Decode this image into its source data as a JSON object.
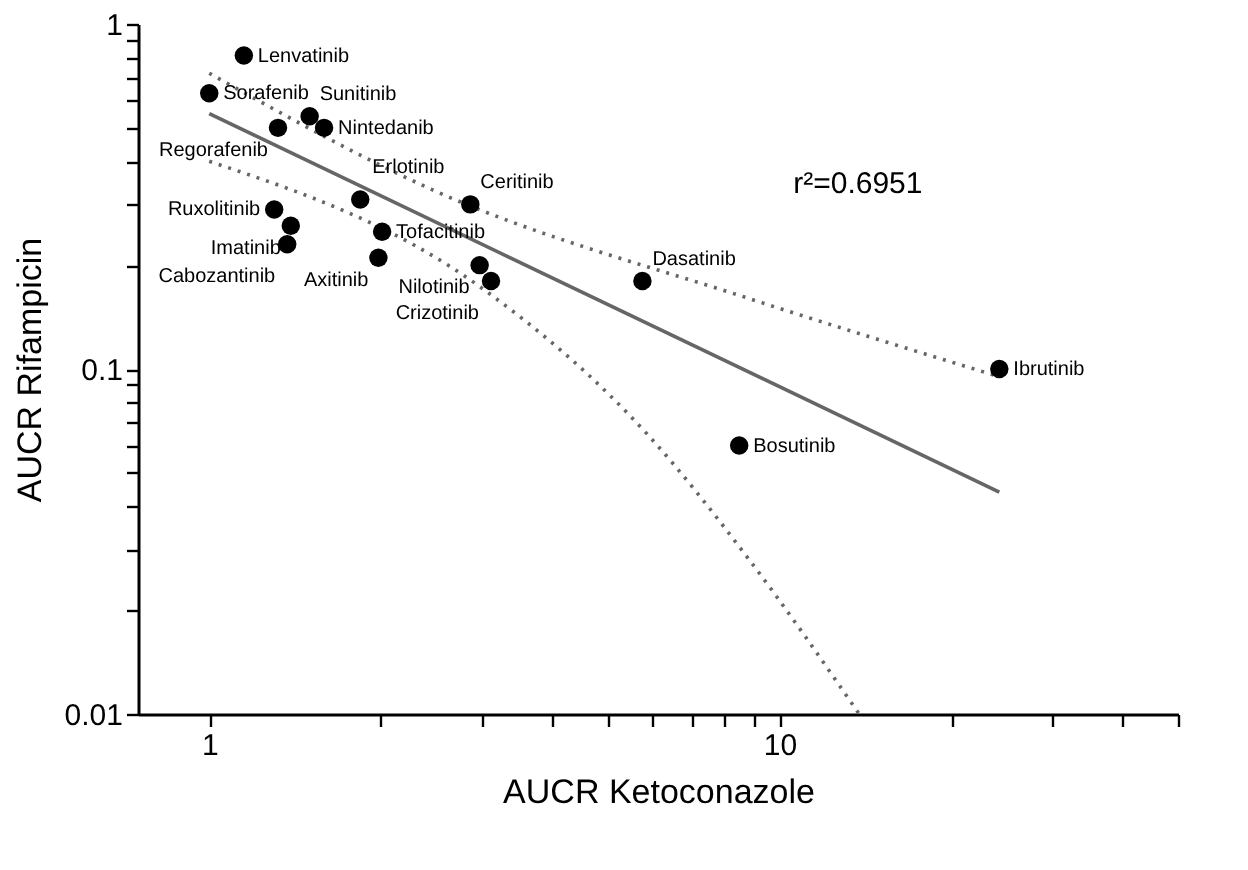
{
  "chart_data": {
    "type": "scatter",
    "xlabel": "AUCR Ketoconazole",
    "ylabel": "AUCR Rifampicin",
    "log": "xy",
    "grid": false,
    "marker": "circle",
    "xlim": [
      0.75,
      50
    ],
    "ylim": [
      0.01,
      1
    ],
    "xticks": [
      1,
      {
        "value": 2,
        "label": null
      },
      {
        "value": 3,
        "label": null
      },
      {
        "value": 4,
        "label": null
      },
      {
        "value": 5,
        "label": null
      },
      {
        "value": 6,
        "label": null
      },
      {
        "value": 7,
        "label": null
      },
      {
        "value": 8,
        "label": null
      },
      {
        "value": 9,
        "label": null
      },
      10,
      {
        "value": 20,
        "label": null
      },
      {
        "value": 30,
        "label": null
      },
      {
        "value": 40,
        "label": null
      },
      {
        "value": 50,
        "label": null
      }
    ],
    "yticks": [
      0.01,
      {
        "value": 0.02,
        "label": null
      },
      {
        "value": 0.03,
        "label": null
      },
      {
        "value": 0.04,
        "label": null
      },
      {
        "value": 0.05,
        "label": null
      },
      {
        "value": 0.06,
        "label": null
      },
      {
        "value": 0.07,
        "label": null
      },
      {
        "value": 0.08,
        "label": null
      },
      {
        "value": 0.09,
        "label": null
      },
      0.1,
      {
        "value": 0.2,
        "label": null
      },
      {
        "value": 0.3,
        "label": null
      },
      {
        "value": 0.4,
        "label": null
      },
      {
        "value": 0.5,
        "label": null
      },
      {
        "value": 0.6,
        "label": null
      },
      {
        "value": 0.7,
        "label": null
      },
      {
        "value": 0.8,
        "label": null
      },
      {
        "value": 0.9,
        "label": null
      },
      1
    ],
    "series": [
      {
        "color": "#000000",
        "x": [
          1.15,
          1.0,
          1.32,
          1.5,
          1.59,
          1.84,
          2.87,
          1.3,
          1.39,
          1.37,
          2.01,
          1.98,
          2.98,
          3.12,
          5.75,
          24.3,
          8.5
        ],
        "values": [
          0.81,
          0.63,
          0.5,
          0.54,
          0.5,
          0.31,
          0.3,
          0.29,
          0.26,
          0.23,
          0.25,
          0.21,
          0.2,
          0.18,
          0.18,
          0.1,
          0.06
        ]
      },
      {
        "type": "line",
        "marker": "none",
        "color": "#666666",
        "line_style": "solid",
        "x": [
          1.0,
          24.3
        ],
        "values": [
          0.55,
          0.044
        ]
      },
      {
        "type": "line",
        "marker": "none",
        "color": "#666666",
        "line_style": "dotted",
        "x": [
          1.0,
          2.47,
          8.85,
          24.3
        ],
        "values": [
          0.72,
          0.33,
          0.16,
          0.095
        ]
      },
      {
        "type": "line",
        "marker": "none",
        "color": "#666666",
        "line_style": "dotted",
        "x": [
          1.0,
          3.03,
          5.9,
          8.85,
          13.8
        ],
        "values": [
          0.4,
          0.17,
          0.064,
          0.028,
          0.01
        ]
      }
    ],
    "annotations": [
      {
        "text": "Lenvatinib",
        "x": 1.15,
        "y": 0.81
      },
      {
        "text": "Sorafenib",
        "x": 1.0,
        "y": 0.63
      },
      {
        "text": "Regorafenib",
        "x": 1.32,
        "y": 0.5
      },
      {
        "text": "Sunitinib",
        "x": 1.5,
        "y": 0.54
      },
      {
        "text": "Nintedanib",
        "x": 1.59,
        "y": 0.5
      },
      {
        "text": "Erlotinib",
        "x": 1.84,
        "y": 0.31
      },
      {
        "text": "Ceritinib",
        "x": 2.87,
        "y": 0.3
      },
      {
        "text": "Ruxolitinib",
        "x": 1.3,
        "y": 0.29
      },
      {
        "text": "Imatinib",
        "x": 1.39,
        "y": 0.26
      },
      {
        "text": "Cabozantinib",
        "x": 1.37,
        "y": 0.23
      },
      {
        "text": "Tofacitinib",
        "x": 2.01,
        "y": 0.25
      },
      {
        "text": "Axitinib",
        "x": 1.98,
        "y": 0.21
      },
      {
        "text": "Nilotinib",
        "x": 2.98,
        "y": 0.2
      },
      {
        "text": "Crizotinib",
        "x": 3.12,
        "y": 0.18
      },
      {
        "text": "Dasatinib",
        "x": 5.75,
        "y": 0.18
      },
      {
        "text": "Ibrutinib",
        "x": 24.3,
        "y": 0.1
      },
      {
        "text": "Bosutinib",
        "x": 8.5,
        "y": 0.06
      },
      "r²=0.6951"
    ]
  }
}
